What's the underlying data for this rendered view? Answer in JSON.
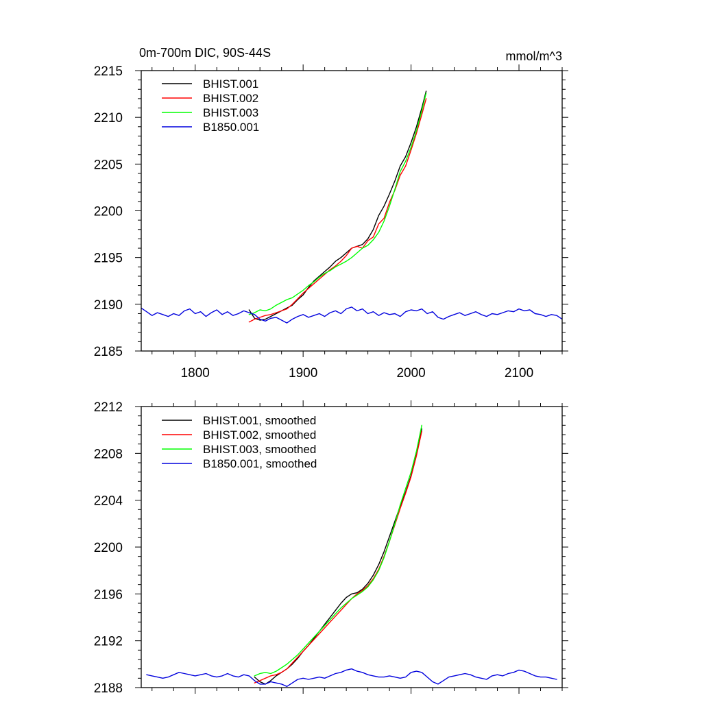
{
  "chart_data": [
    {
      "type": "line",
      "title": "0m-700m DIC, 90S-44S",
      "unit_label": "mmol/m^3",
      "xlim": [
        1750,
        2140
      ],
      "ylim": [
        2185,
        2215
      ],
      "xticks": [
        1800,
        1900,
        2000,
        2100
      ],
      "xtick_labels": [
        "1800",
        "1900",
        "2000",
        "2100"
      ],
      "yticks": [
        2185,
        2190,
        2195,
        2200,
        2205,
        2210,
        2215
      ],
      "ytick_labels": [
        "2185",
        "2190",
        "2195",
        "2200",
        "2205",
        "2210",
        "2215"
      ],
      "grid": false,
      "legend_position": "top-left",
      "series": [
        {
          "name": "BHIST.001",
          "color": "#000000",
          "x": [
            1850,
            1855,
            1860,
            1865,
            1870,
            1875,
            1880,
            1885,
            1890,
            1895,
            1900,
            1905,
            1910,
            1915,
            1920,
            1925,
            1930,
            1935,
            1940,
            1945,
            1950,
            1955,
            1960,
            1965,
            1970,
            1975,
            1980,
            1985,
            1990,
            1995,
            2000,
            2005,
            2010,
            2014
          ],
          "y": [
            2189.4,
            2188.5,
            2188.3,
            2188.4,
            2188.7,
            2189.0,
            2189.3,
            2189.6,
            2189.9,
            2190.5,
            2191.0,
            2191.8,
            2192.5,
            2193.0,
            2193.5,
            2194.0,
            2194.6,
            2195.0,
            2195.5,
            2196.0,
            2196.2,
            2196.4,
            2197.0,
            2198.0,
            2199.5,
            2200.5,
            2201.8,
            2203.2,
            2204.8,
            2205.8,
            2207.3,
            2209.0,
            2211.0,
            2212.8
          ]
        },
        {
          "name": "BHIST.002",
          "color": "#ff0000",
          "x": [
            1850,
            1855,
            1860,
            1865,
            1870,
            1875,
            1880,
            1885,
            1890,
            1895,
            1900,
            1905,
            1910,
            1915,
            1920,
            1925,
            1930,
            1935,
            1940,
            1945,
            1950,
            1955,
            1960,
            1965,
            1970,
            1975,
            1980,
            1985,
            1990,
            1995,
            2000,
            2005,
            2010,
            2014
          ],
          "y": [
            2188.1,
            2188.4,
            2188.6,
            2188.8,
            2188.9,
            2189.1,
            2189.3,
            2189.5,
            2190.0,
            2190.6,
            2191.2,
            2191.7,
            2192.2,
            2192.7,
            2193.2,
            2193.7,
            2194.1,
            2194.6,
            2195.2,
            2196.0,
            2196.2,
            2196.0,
            2196.8,
            2197.2,
            2198.6,
            2199.2,
            2200.9,
            2202.2,
            2203.8,
            2204.8,
            2206.5,
            2208.3,
            2210.3,
            2212.0
          ]
        },
        {
          "name": "BHIST.003",
          "color": "#00ff00",
          "x": [
            1850,
            1855,
            1860,
            1865,
            1870,
            1875,
            1880,
            1885,
            1890,
            1895,
            1900,
            1905,
            1910,
            1915,
            1920,
            1925,
            1930,
            1935,
            1940,
            1945,
            1950,
            1955,
            1960,
            1965,
            1970,
            1975,
            1980,
            1985,
            1990,
            1995,
            2000,
            2005,
            2010,
            2014
          ],
          "y": [
            2188.9,
            2189.1,
            2189.4,
            2189.3,
            2189.5,
            2189.9,
            2190.2,
            2190.5,
            2190.7,
            2191.1,
            2191.5,
            2192.0,
            2192.4,
            2192.9,
            2193.3,
            2193.6,
            2194.0,
            2194.3,
            2194.6,
            2195.0,
            2195.5,
            2196.0,
            2196.3,
            2196.9,
            2197.7,
            2198.9,
            2200.5,
            2202.3,
            2204.2,
            2205.3,
            2206.8,
            2208.6,
            2210.7,
            2212.6
          ]
        },
        {
          "name": "B1850.001",
          "color": "#0000dd",
          "x": [
            1750,
            1755,
            1760,
            1765,
            1770,
            1775,
            1780,
            1785,
            1790,
            1795,
            1800,
            1805,
            1810,
            1815,
            1820,
            1825,
            1830,
            1835,
            1840,
            1845,
            1850,
            1855,
            1860,
            1865,
            1870,
            1875,
            1880,
            1885,
            1890,
            1895,
            1900,
            1905,
            1910,
            1915,
            1920,
            1925,
            1930,
            1935,
            1940,
            1945,
            1950,
            1955,
            1960,
            1965,
            1970,
            1975,
            1980,
            1985,
            1990,
            1995,
            2000,
            2005,
            2010,
            2015,
            2020,
            2025,
            2030,
            2035,
            2040,
            2045,
            2050,
            2055,
            2060,
            2065,
            2070,
            2075,
            2080,
            2085,
            2090,
            2095,
            2100,
            2105,
            2110,
            2115,
            2120,
            2125,
            2130,
            2135,
            2140
          ],
          "y": [
            2189.6,
            2189.2,
            2188.8,
            2189.1,
            2188.9,
            2188.7,
            2189.0,
            2188.8,
            2189.3,
            2189.5,
            2189.0,
            2189.2,
            2188.7,
            2189.1,
            2189.4,
            2188.9,
            2189.2,
            2188.8,
            2189.0,
            2189.3,
            2189.1,
            2188.9,
            2188.4,
            2188.2,
            2188.5,
            2188.6,
            2188.3,
            2188.0,
            2188.4,
            2188.7,
            2188.9,
            2188.6,
            2188.8,
            2189.0,
            2188.7,
            2189.1,
            2189.3,
            2189.0,
            2189.5,
            2189.7,
            2189.3,
            2189.5,
            2189.0,
            2189.2,
            2188.8,
            2189.1,
            2188.9,
            2189.0,
            2188.7,
            2189.2,
            2189.4,
            2189.3,
            2189.5,
            2189.0,
            2189.2,
            2188.6,
            2188.4,
            2188.7,
            2188.9,
            2189.1,
            2188.8,
            2189.0,
            2189.2,
            2188.9,
            2188.7,
            2189.0,
            2188.9,
            2189.1,
            2189.3,
            2189.2,
            2189.5,
            2189.3,
            2189.4,
            2189.0,
            2188.9,
            2188.7,
            2188.9,
            2188.8,
            2188.4
          ]
        }
      ]
    },
    {
      "type": "line",
      "title": "",
      "xlim": [
        1750,
        2140
      ],
      "ylim": [
        2188,
        2212
      ],
      "xticks": [
        1800,
        1900,
        2000,
        2100
      ],
      "xtick_labels": [],
      "yticks": [
        2188,
        2192,
        2196,
        2200,
        2204,
        2208,
        2212
      ],
      "ytick_labels": [
        "2188",
        "2192",
        "2196",
        "2200",
        "2204",
        "2208",
        "2212"
      ],
      "grid": false,
      "legend_position": "top-left",
      "series": [
        {
          "name": "BHIST.001, smoothed",
          "color": "#000000",
          "x": [
            1855,
            1860,
            1865,
            1870,
            1875,
            1880,
            1885,
            1890,
            1895,
            1900,
            1905,
            1910,
            1915,
            1920,
            1925,
            1930,
            1935,
            1940,
            1945,
            1950,
            1955,
            1960,
            1965,
            1970,
            1975,
            1980,
            1985,
            1990,
            1995,
            2000,
            2005,
            2010
          ],
          "y": [
            2188.9,
            2188.5,
            2188.3,
            2188.6,
            2189.0,
            2189.3,
            2189.6,
            2190.0,
            2190.5,
            2191.1,
            2191.6,
            2192.2,
            2192.8,
            2193.4,
            2194.0,
            2194.6,
            2195.2,
            2195.7,
            2196.0,
            2196.1,
            2196.4,
            2196.9,
            2197.6,
            2198.5,
            2199.6,
            2200.9,
            2202.2,
            2203.5,
            2204.7,
            2206.1,
            2207.9,
            2210.1
          ]
        },
        {
          "name": "BHIST.002, smoothed",
          "color": "#ff0000",
          "x": [
            1855,
            1860,
            1865,
            1870,
            1875,
            1880,
            1885,
            1890,
            1895,
            1900,
            1905,
            1910,
            1915,
            1920,
            1925,
            1930,
            1935,
            1940,
            1945,
            1950,
            1955,
            1960,
            1965,
            1970,
            1975,
            1980,
            1985,
            1990,
            1995,
            2000,
            2005,
            2010
          ],
          "y": [
            2188.4,
            2188.6,
            2188.8,
            2189.0,
            2189.1,
            2189.3,
            2189.6,
            2190.1,
            2190.6,
            2191.1,
            2191.6,
            2192.1,
            2192.6,
            2193.1,
            2193.6,
            2194.1,
            2194.6,
            2195.1,
            2195.6,
            2196.0,
            2196.3,
            2196.7,
            2197.3,
            2198.1,
            2199.2,
            2200.5,
            2201.9,
            2203.3,
            2204.6,
            2206.0,
            2207.8,
            2209.9
          ]
        },
        {
          "name": "BHIST.003, smoothed",
          "color": "#00ff00",
          "x": [
            1855,
            1860,
            1865,
            1870,
            1875,
            1880,
            1885,
            1890,
            1895,
            1900,
            1905,
            1910,
            1915,
            1920,
            1925,
            1930,
            1935,
            1940,
            1945,
            1950,
            1955,
            1960,
            1965,
            1970,
            1975,
            1980,
            1985,
            1990,
            1995,
            2000,
            2005,
            2010
          ],
          "y": [
            2189.0,
            2189.2,
            2189.3,
            2189.2,
            2189.4,
            2189.7,
            2190.0,
            2190.4,
            2190.8,
            2191.3,
            2191.8,
            2192.3,
            2192.8,
            2193.3,
            2193.8,
            2194.3,
            2194.8,
            2195.2,
            2195.6,
            2195.9,
            2196.2,
            2196.6,
            2197.2,
            2198.0,
            2199.1,
            2200.5,
            2202.0,
            2203.6,
            2205.0,
            2206.4,
            2208.2,
            2210.4
          ]
        },
        {
          "name": "B1850.001, smoothed",
          "color": "#0000dd",
          "x": [
            1755,
            1760,
            1765,
            1770,
            1775,
            1780,
            1785,
            1790,
            1795,
            1800,
            1805,
            1810,
            1815,
            1820,
            1825,
            1830,
            1835,
            1840,
            1845,
            1850,
            1855,
            1860,
            1865,
            1870,
            1875,
            1880,
            1885,
            1890,
            1895,
            1900,
            1905,
            1910,
            1915,
            1920,
            1925,
            1930,
            1935,
            1940,
            1945,
            1950,
            1955,
            1960,
            1965,
            1970,
            1975,
            1980,
            1985,
            1990,
            1995,
            2000,
            2005,
            2010,
            2015,
            2020,
            2025,
            2030,
            2035,
            2040,
            2045,
            2050,
            2055,
            2060,
            2065,
            2070,
            2075,
            2080,
            2085,
            2090,
            2095,
            2100,
            2105,
            2110,
            2115,
            2120,
            2125,
            2130,
            2135
          ],
          "y": [
            2189.1,
            2189.0,
            2188.9,
            2188.8,
            2188.9,
            2189.1,
            2189.3,
            2189.2,
            2189.1,
            2189.0,
            2189.1,
            2189.2,
            2189.0,
            2188.9,
            2189.0,
            2189.2,
            2189.0,
            2188.9,
            2189.1,
            2189.0,
            2188.6,
            2188.3,
            2188.3,
            2188.5,
            2188.4,
            2188.3,
            2188.1,
            2188.4,
            2188.7,
            2188.8,
            2188.7,
            2188.8,
            2188.9,
            2188.8,
            2189.0,
            2189.2,
            2189.3,
            2189.5,
            2189.6,
            2189.4,
            2189.3,
            2189.1,
            2189.0,
            2188.9,
            2188.9,
            2189.0,
            2188.9,
            2188.8,
            2188.9,
            2189.3,
            2189.4,
            2189.3,
            2188.9,
            2188.5,
            2188.3,
            2188.6,
            2188.9,
            2189.0,
            2189.1,
            2189.2,
            2189.1,
            2188.9,
            2188.8,
            2188.7,
            2189.0,
            2189.1,
            2189.0,
            2189.2,
            2189.3,
            2189.5,
            2189.4,
            2189.2,
            2189.0,
            2188.9,
            2188.9,
            2188.8,
            2188.7
          ]
        }
      ]
    }
  ]
}
